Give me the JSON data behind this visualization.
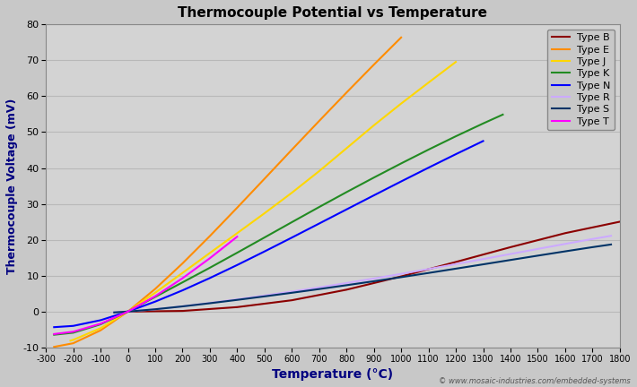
{
  "title": "Thermocouple Potential vs Temperature",
  "xlabel": "Temperature (°C)",
  "ylabel": "Thermocouple Voltage (mV)",
  "xlim": [
    -300,
    1800
  ],
  "ylim": [
    -10,
    80
  ],
  "xticks": [
    -300,
    -200,
    -100,
    0,
    100,
    200,
    300,
    400,
    500,
    600,
    700,
    800,
    900,
    1000,
    1100,
    1200,
    1300,
    1400,
    1500,
    1600,
    1700,
    1800
  ],
  "yticks": [
    -10,
    0,
    10,
    20,
    30,
    40,
    50,
    60,
    70,
    80
  ],
  "background_color": "#c8c8c8",
  "plot_bg_color": "#d3d3d3",
  "grid_color": "#b8b8b8",
  "watermark": "© www.mosaic-industries.com/embedded-systems",
  "figsize": [
    7.1,
    4.32
  ],
  "dpi": 100,
  "series": [
    {
      "label": "Type B",
      "color": "#8B0000",
      "points": [
        [
          0,
          0.0
        ],
        [
          200,
          0.178
        ],
        [
          400,
          1.242
        ],
        [
          600,
          3.154
        ],
        [
          800,
          6.093
        ],
        [
          1000,
          9.787
        ],
        [
          1200,
          13.82
        ],
        [
          1400,
          17.942
        ],
        [
          1600,
          21.846
        ],
        [
          1800,
          25.035
        ]
      ]
    },
    {
      "label": "Type E",
      "color": "#FF8C00",
      "points": [
        [
          -270,
          -9.835
        ],
        [
          -200,
          -8.825
        ],
        [
          -100,
          -5.237
        ],
        [
          0,
          0.0
        ],
        [
          100,
          6.319
        ],
        [
          200,
          13.421
        ],
        [
          300,
          21.036
        ],
        [
          400,
          28.946
        ],
        [
          500,
          37.005
        ],
        [
          600,
          45.093
        ],
        [
          700,
          53.112
        ],
        [
          800,
          61.017
        ],
        [
          900,
          68.787
        ],
        [
          1000,
          76.373
        ]
      ]
    },
    {
      "label": "Type J",
      "color": "#FFD700",
      "points": [
        [
          -210,
          -8.096
        ],
        [
          -200,
          -7.89
        ],
        [
          -100,
          -4.633
        ],
        [
          0,
          0.0
        ],
        [
          100,
          5.269
        ],
        [
          200,
          10.779
        ],
        [
          300,
          16.327
        ],
        [
          400,
          21.848
        ],
        [
          500,
          27.393
        ],
        [
          600,
          33.102
        ],
        [
          700,
          39.132
        ],
        [
          800,
          45.494
        ],
        [
          900,
          51.877
        ],
        [
          1000,
          57.953
        ],
        [
          1100,
          63.792
        ],
        [
          1200,
          69.553
        ]
      ]
    },
    {
      "label": "Type K",
      "color": "#228B22",
      "points": [
        [
          -270,
          -6.458
        ],
        [
          -200,
          -5.891
        ],
        [
          -100,
          -3.554
        ],
        [
          0,
          0.0
        ],
        [
          100,
          4.096
        ],
        [
          200,
          8.138
        ],
        [
          300,
          12.209
        ],
        [
          400,
          16.397
        ],
        [
          500,
          20.644
        ],
        [
          600,
          24.905
        ],
        [
          700,
          29.129
        ],
        [
          800,
          33.275
        ],
        [
          900,
          37.326
        ],
        [
          1000,
          41.276
        ],
        [
          1100,
          45.119
        ],
        [
          1200,
          48.838
        ],
        [
          1300,
          52.41
        ],
        [
          1372,
          54.886
        ]
      ]
    },
    {
      "label": "Type N",
      "color": "#0000FF",
      "points": [
        [
          -270,
          -4.345
        ],
        [
          -200,
          -3.99
        ],
        [
          -100,
          -2.407
        ],
        [
          0,
          0.0
        ],
        [
          100,
          2.774
        ],
        [
          200,
          5.913
        ],
        [
          300,
          9.341
        ],
        [
          400,
          12.974
        ],
        [
          500,
          16.748
        ],
        [
          600,
          20.613
        ],
        [
          700,
          24.527
        ],
        [
          800,
          28.455
        ],
        [
          900,
          32.371
        ],
        [
          1000,
          36.256
        ],
        [
          1100,
          40.087
        ],
        [
          1200,
          43.846
        ],
        [
          1300,
          47.513
        ]
      ]
    },
    {
      "label": "Type R",
      "color": "#ccaaff",
      "points": [
        [
          -50,
          -0.226
        ],
        [
          0,
          0.0
        ],
        [
          100,
          0.647
        ],
        [
          200,
          1.469
        ],
        [
          300,
          2.401
        ],
        [
          400,
          3.408
        ],
        [
          500,
          4.471
        ],
        [
          600,
          5.583
        ],
        [
          700,
          6.743
        ],
        [
          800,
          7.95
        ],
        [
          900,
          9.205
        ],
        [
          1000,
          10.506
        ],
        [
          1100,
          11.85
        ],
        [
          1200,
          13.228
        ],
        [
          1300,
          14.629
        ],
        [
          1400,
          16.04
        ],
        [
          1500,
          17.451
        ],
        [
          1600,
          18.849
        ],
        [
          1700,
          20.222
        ],
        [
          1768,
          21.101
        ]
      ]
    },
    {
      "label": "Type S",
      "color": "#003366",
      "points": [
        [
          -50,
          -0.236
        ],
        [
          0,
          0.0
        ],
        [
          100,
          0.646
        ],
        [
          200,
          1.441
        ],
        [
          300,
          2.323
        ],
        [
          400,
          3.259
        ],
        [
          500,
          4.233
        ],
        [
          600,
          5.239
        ],
        [
          700,
          6.275
        ],
        [
          800,
          7.345
        ],
        [
          900,
          8.449
        ],
        [
          1000,
          9.587
        ],
        [
          1100,
          10.757
        ],
        [
          1200,
          11.951
        ],
        [
          1300,
          13.159
        ],
        [
          1400,
          14.373
        ],
        [
          1500,
          15.582
        ],
        [
          1600,
          16.777
        ],
        [
          1700,
          17.947
        ],
        [
          1768,
          18.693
        ]
      ]
    },
    {
      "label": "Type T",
      "color": "#FF00FF",
      "points": [
        [
          -270,
          -6.258
        ],
        [
          -200,
          -5.603
        ],
        [
          -100,
          -3.379
        ],
        [
          0,
          0.0
        ],
        [
          100,
          4.279
        ],
        [
          200,
          9.288
        ],
        [
          300,
          14.862
        ],
        [
          400,
          20.872
        ]
      ]
    }
  ]
}
